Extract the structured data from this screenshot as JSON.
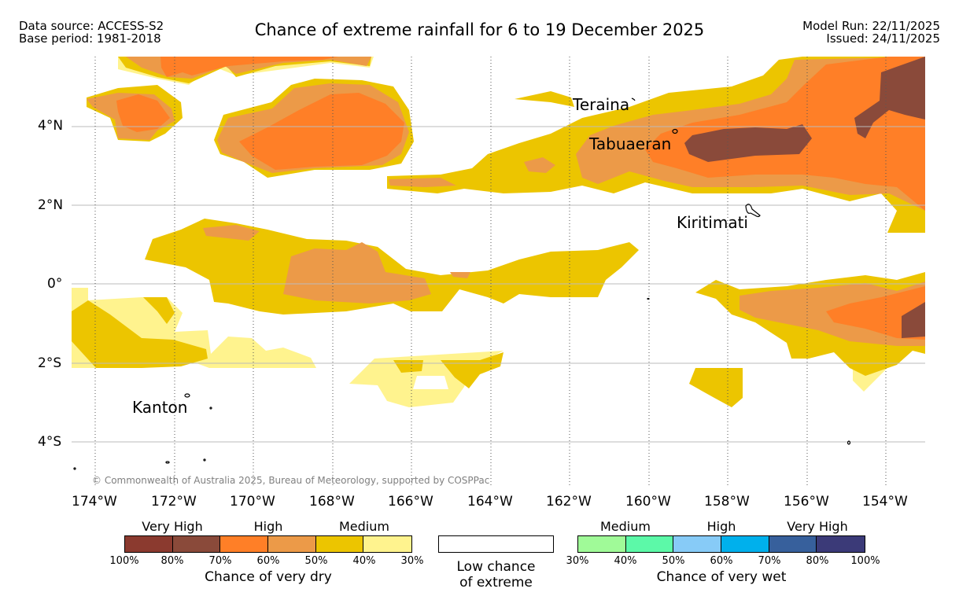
{
  "header": {
    "data_source": "Data source: ACCESS-S2",
    "base_period": "Base period: 1981-2018",
    "title": "Chance of extreme rainfall for 6 to 19 December 2025",
    "model_run": "Model Run: 22/11/2025",
    "issued": "Issued: 24/11/2025"
  },
  "map": {
    "lat_labels": [
      "4°N",
      "2°N",
      "0°",
      "2°S",
      "4°S"
    ],
    "lon_labels": [
      "174°W",
      "172°W",
      "170°W",
      "168°W",
      "166°W",
      "164°W",
      "162°W",
      "160°W",
      "158°W",
      "156°W",
      "154°W"
    ],
    "places": {
      "teraina": "Teraina",
      "tabuaeran": "Tabuaeran",
      "kiritimati": "Kiritimati",
      "kanton": "Kanton"
    },
    "copyright": "© Commonwealth of Australia 2025, Bureau of Meteorology, supported by COSPPac"
  },
  "colors": {
    "dry_100": "#8b3a2f",
    "dry_80": "#8a4a3a",
    "dry_70": "#ff7f27",
    "dry_60": "#ec9a48",
    "dry_50": "#ecc500",
    "dry_40": "#fff38e",
    "wet_30": "#a0fa98",
    "wet_40": "#5cf9a8",
    "wet_50": "#87cbf7",
    "wet_60": "#00b0ec",
    "wet_70": "#37609c",
    "wet_80": "#3b3a78"
  },
  "legend": {
    "dry": {
      "headers": [
        "Very High",
        "High",
        "Medium"
      ],
      "ticks": [
        "100%",
        "80%",
        "70%",
        "60%",
        "50%",
        "40%",
        "30%"
      ],
      "title": "Chance of very dry"
    },
    "low": {
      "line1": "Low chance",
      "line2": "of extreme"
    },
    "wet": {
      "headers": [
        "Medium",
        "High",
        "Very High"
      ],
      "ticks": [
        "30%",
        "40%",
        "50%",
        "60%",
        "70%",
        "80%",
        "100%"
      ],
      "title": "Chance of very wet"
    }
  }
}
